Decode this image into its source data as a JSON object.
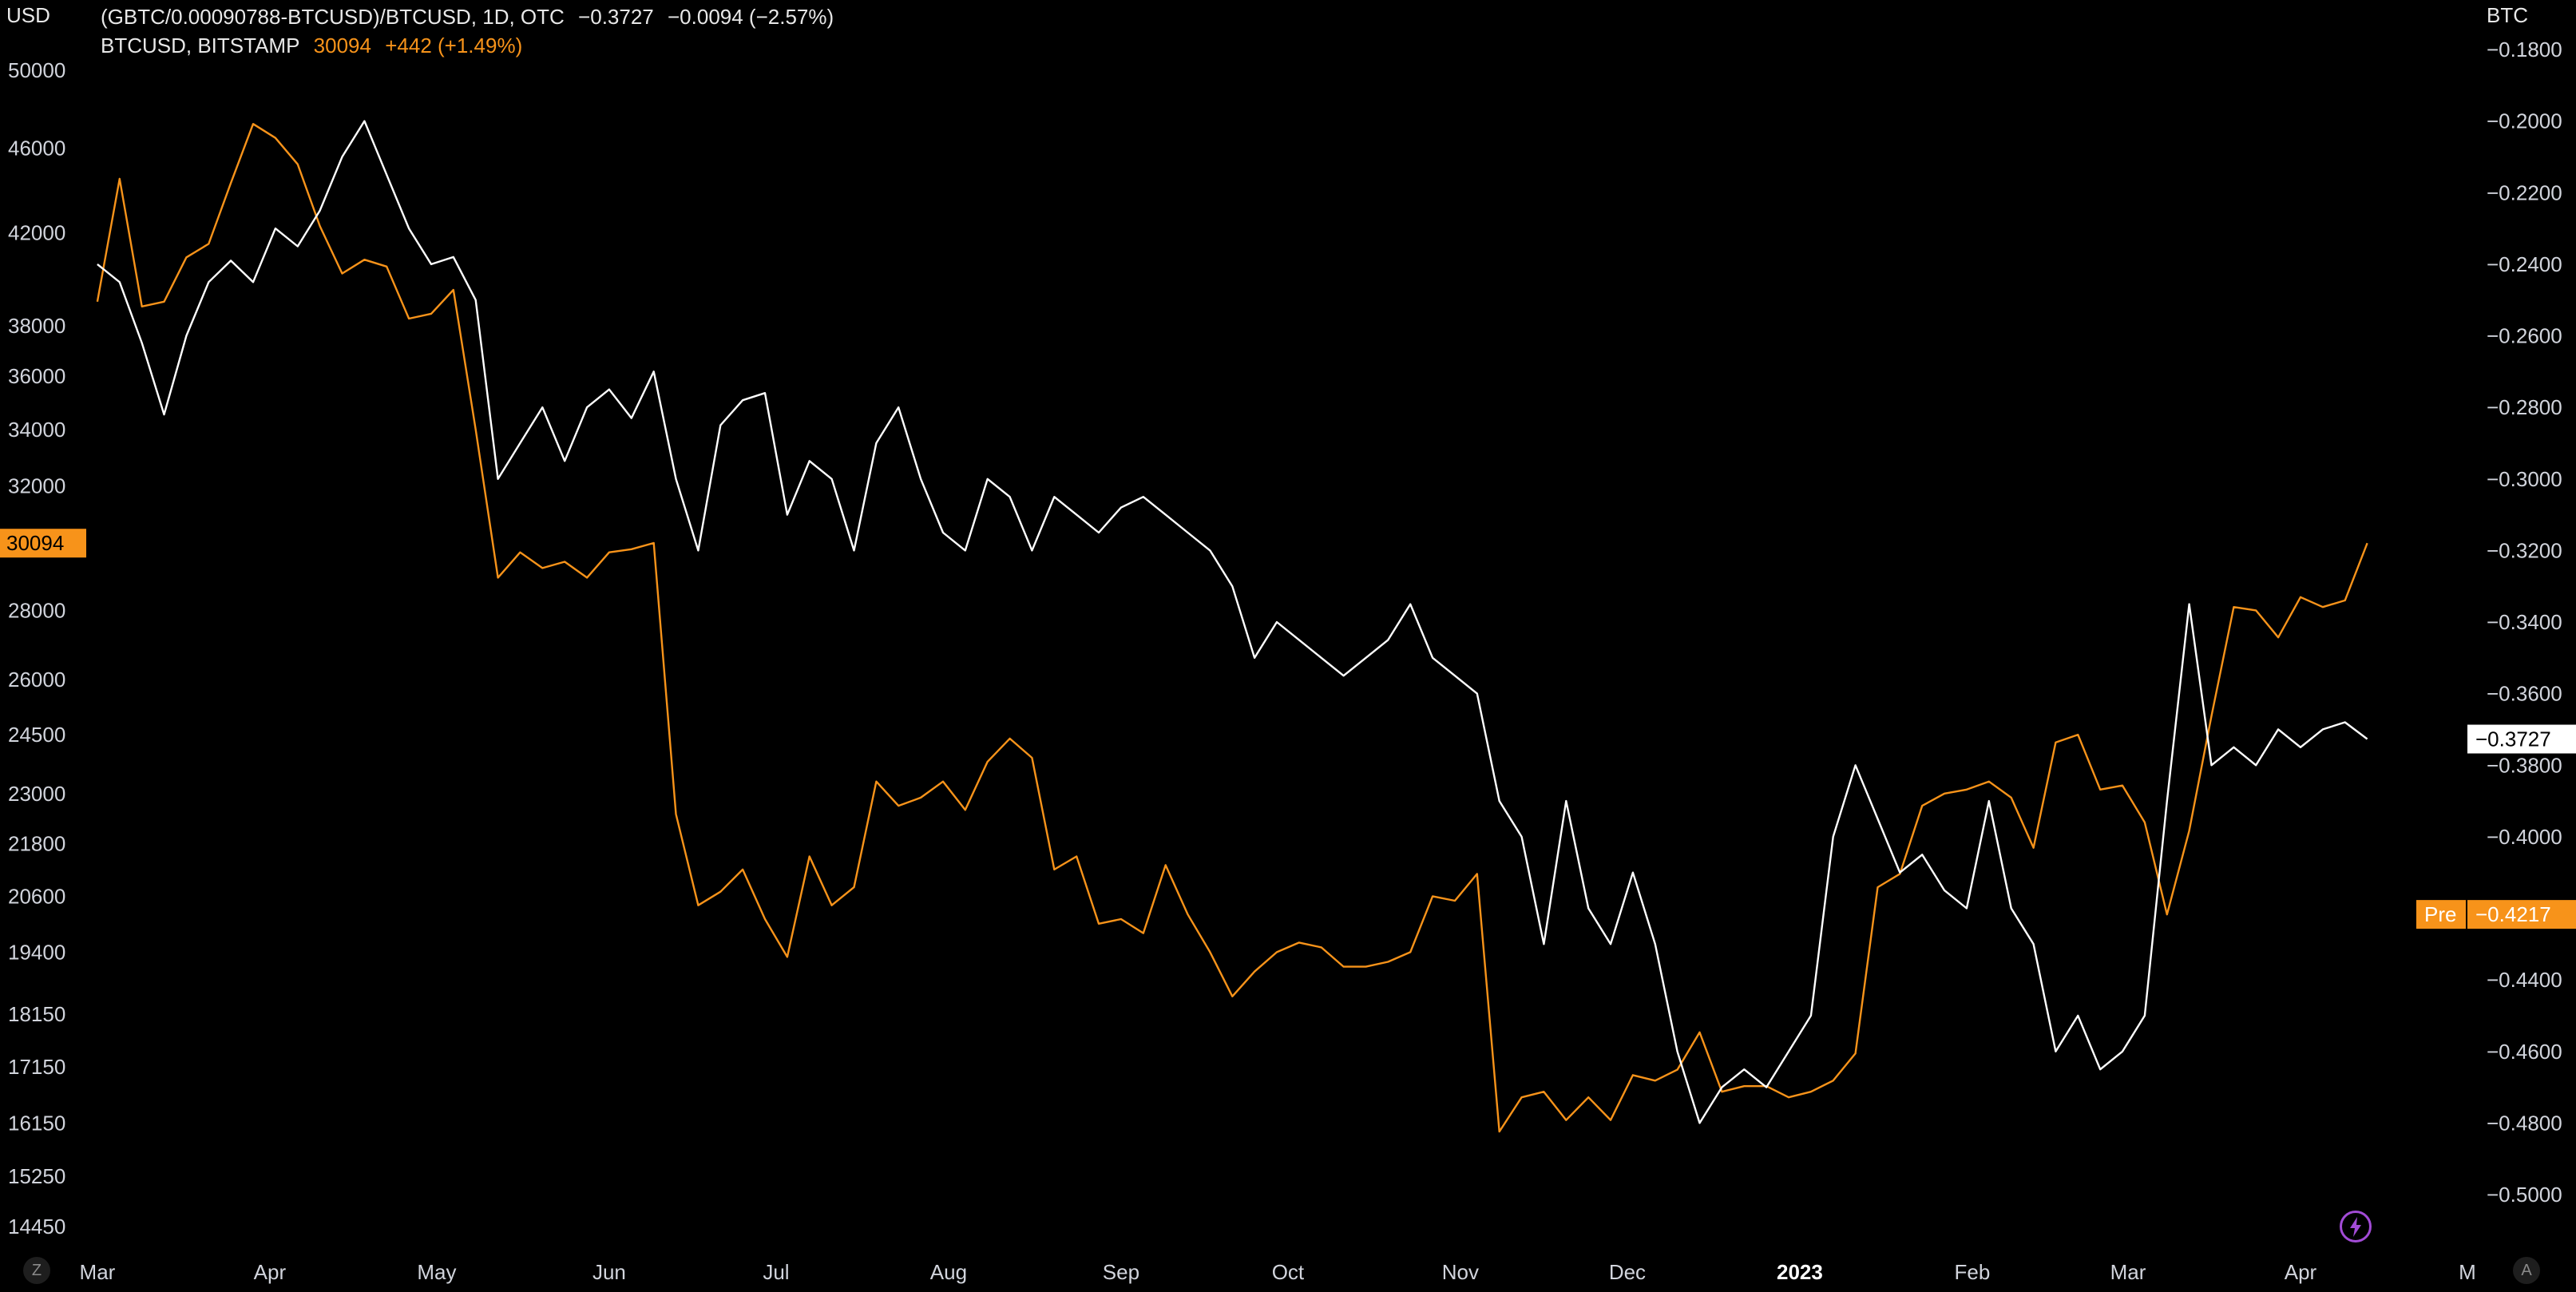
{
  "header": {
    "line1_symbol": "(GBTC/0.00090788-BTCUSD)/BTCUSD, 1D, OTC",
    "line1_value": "−0.3727",
    "line1_change": "−0.0094 (−2.57%)",
    "line2_symbol": "BTCUSD, BITSTAMP",
    "line2_value": "30094",
    "line2_change": "+442 (+1.49%)"
  },
  "left_unit": "USD",
  "right_unit": "BTC",
  "corner_left": "Z",
  "corner_right": "A",
  "colors": {
    "btcusd": "#f7931a",
    "ratio": "#ffffff",
    "background": "#000000",
    "axis_text": "#d1d4dc"
  },
  "chart_data": {
    "type": "line",
    "x_months": [
      "Mar",
      "Apr",
      "May",
      "Jun",
      "Jul",
      "Aug",
      "Sep",
      "Oct",
      "Nov",
      "Dec",
      "2023",
      "Feb",
      "Mar",
      "Apr",
      "M"
    ],
    "left_axis": {
      "unit": "USD",
      "scale": "log",
      "ticks": [
        "50000",
        "46000",
        "42000",
        "38000",
        "36000",
        "34000",
        "32000",
        "28000",
        "26000",
        "24500",
        "23000",
        "21800",
        "20600",
        "19400",
        "18150",
        "17150",
        "16150",
        "15250",
        "14450"
      ]
    },
    "right_axis": {
      "unit": "BTC",
      "ticks": [
        "−0.1800",
        "−0.2000",
        "−0.2200",
        "−0.2400",
        "−0.2600",
        "−0.2800",
        "−0.3000",
        "−0.3200",
        "−0.3400",
        "−0.3600",
        "−0.3800",
        "−0.4000",
        "−0.4200",
        "−0.4400",
        "−0.4600",
        "−0.4800",
        "−0.5000"
      ]
    },
    "price_labels": {
      "btcusd_last": "30094",
      "ratio_last": "−0.3727",
      "pre_tag": "Pre",
      "pre_value": "−0.4217"
    },
    "series": [
      {
        "name": "BTCUSD, BITSTAMP",
        "axis": "left",
        "color": "#f7931a",
        "points": [
          [
            "Mar 1",
            39000
          ],
          [
            "Mar 5",
            44500
          ],
          [
            "Mar 9",
            38800
          ],
          [
            "Mar 13",
            39000
          ],
          [
            "Mar 17",
            40900
          ],
          [
            "Mar 21",
            41500
          ],
          [
            "Mar 25",
            44300
          ],
          [
            "Mar 29",
            47200
          ],
          [
            "Apr 2",
            46500
          ],
          [
            "Apr 6",
            45200
          ],
          [
            "Apr 10",
            42300
          ],
          [
            "Apr 14",
            40200
          ],
          [
            "Apr 18",
            40800
          ],
          [
            "Apr 22",
            40500
          ],
          [
            "Apr 26",
            38300
          ],
          [
            "Apr 30",
            38500
          ],
          [
            "May 4",
            39500
          ],
          [
            "May 8",
            34000
          ],
          [
            "May 12",
            29000
          ],
          [
            "May 16",
            29800
          ],
          [
            "May 20",
            29300
          ],
          [
            "May 24",
            29500
          ],
          [
            "May 28",
            29000
          ],
          [
            "Jun 1",
            29800
          ],
          [
            "Jun 5",
            29900
          ],
          [
            "Jun 9",
            30100
          ],
          [
            "Jun 13",
            22500
          ],
          [
            "Jun 17",
            20400
          ],
          [
            "Jun 21",
            20700
          ],
          [
            "Jun 25",
            21200
          ],
          [
            "Jun 29",
            20100
          ],
          [
            "Jul 3",
            19300
          ],
          [
            "Jul 7",
            21500
          ],
          [
            "Jul 11",
            20400
          ],
          [
            "Jul 15",
            20800
          ],
          [
            "Jul 19",
            23300
          ],
          [
            "Jul 23",
            22700
          ],
          [
            "Jul 27",
            22900
          ],
          [
            "Jul 31",
            23300
          ],
          [
            "Aug 4",
            22600
          ],
          [
            "Aug 8",
            23800
          ],
          [
            "Aug 12",
            24400
          ],
          [
            "Aug 16",
            23900
          ],
          [
            "Aug 20",
            21200
          ],
          [
            "Aug 24",
            21500
          ],
          [
            "Aug 28",
            20000
          ],
          [
            "Sep 1",
            20100
          ],
          [
            "Sep 5",
            19800
          ],
          [
            "Sep 9",
            21300
          ],
          [
            "Sep 13",
            20200
          ],
          [
            "Sep 17",
            19400
          ],
          [
            "Sep 21",
            18500
          ],
          [
            "Sep 25",
            19000
          ],
          [
            "Sep 29",
            19400
          ],
          [
            "Oct 3",
            19600
          ],
          [
            "Oct 7",
            19500
          ],
          [
            "Oct 11",
            19100
          ],
          [
            "Oct 15",
            19100
          ],
          [
            "Oct 19",
            19200
          ],
          [
            "Oct 23",
            19400
          ],
          [
            "Oct 27",
            20600
          ],
          [
            "Oct 31",
            20500
          ],
          [
            "Nov 4",
            21100
          ],
          [
            "Nov 8",
            16000
          ],
          [
            "Nov 12",
            16600
          ],
          [
            "Nov 16",
            16700
          ],
          [
            "Nov 20",
            16200
          ],
          [
            "Nov 24",
            16600
          ],
          [
            "Nov 28",
            16200
          ],
          [
            "Dec 2",
            17000
          ],
          [
            "Dec 6",
            16900
          ],
          [
            "Dec 10",
            17100
          ],
          [
            "Dec 14",
            17800
          ],
          [
            "Dec 18",
            16700
          ],
          [
            "Dec 22",
            16800
          ],
          [
            "Dec 26",
            16800
          ],
          [
            "Dec 30",
            16600
          ],
          [
            "Jan 3",
            16700
          ],
          [
            "Jan 7",
            16900
          ],
          [
            "Jan 11",
            17400
          ],
          [
            "Jan 15",
            20800
          ],
          [
            "Jan 19",
            21100
          ],
          [
            "Jan 23",
            22700
          ],
          [
            "Jan 27",
            23000
          ],
          [
            "Jan 31",
            23100
          ],
          [
            "Feb 4",
            23300
          ],
          [
            "Feb 8",
            22900
          ],
          [
            "Feb 12",
            21700
          ],
          [
            "Feb 16",
            24300
          ],
          [
            "Feb 20",
            24500
          ],
          [
            "Feb 24",
            23100
          ],
          [
            "Feb 28",
            23200
          ],
          [
            "Mar 4",
            22300
          ],
          [
            "Mar 8",
            20200
          ],
          [
            "Mar 12",
            22100
          ],
          [
            "Mar 16",
            25000
          ],
          [
            "Mar 20",
            28100
          ],
          [
            "Mar 24",
            28000
          ],
          [
            "Mar 28",
            27200
          ],
          [
            "Apr 1",
            28400
          ],
          [
            "Apr 5",
            28100
          ],
          [
            "Apr 9",
            28300
          ],
          [
            "Apr 13",
            30094
          ]
        ]
      },
      {
        "name": "(GBTC/0.00090788-BTCUSD)/BTCUSD",
        "axis": "right",
        "color": "#ffffff",
        "points": [
          [
            "Mar 1",
            -0.24
          ],
          [
            "Mar 5",
            -0.245
          ],
          [
            "Mar 9",
            -0.262
          ],
          [
            "Mar 13",
            -0.282
          ],
          [
            "Mar 17",
            -0.26
          ],
          [
            "Mar 21",
            -0.245
          ],
          [
            "Mar 25",
            -0.239
          ],
          [
            "Mar 29",
            -0.245
          ],
          [
            "Apr 2",
            -0.23
          ],
          [
            "Apr 6",
            -0.235
          ],
          [
            "Apr 10",
            -0.225
          ],
          [
            "Apr 14",
            -0.21
          ],
          [
            "Apr 18",
            -0.2
          ],
          [
            "Apr 22",
            -0.215
          ],
          [
            "Apr 26",
            -0.23
          ],
          [
            "Apr 30",
            -0.24
          ],
          [
            "May 4",
            -0.238
          ],
          [
            "May 8",
            -0.25
          ],
          [
            "May 12",
            -0.3
          ],
          [
            "May 16",
            -0.29
          ],
          [
            "May 20",
            -0.28
          ],
          [
            "May 24",
            -0.295
          ],
          [
            "May 28",
            -0.28
          ],
          [
            "Jun 1",
            -0.275
          ],
          [
            "Jun 5",
            -0.283
          ],
          [
            "Jun 9",
            -0.27
          ],
          [
            "Jun 13",
            -0.3
          ],
          [
            "Jun 17",
            -0.32
          ],
          [
            "Jun 21",
            -0.285
          ],
          [
            "Jun 25",
            -0.278
          ],
          [
            "Jun 29",
            -0.276
          ],
          [
            "Jul 3",
            -0.31
          ],
          [
            "Jul 7",
            -0.295
          ],
          [
            "Jul 11",
            -0.3
          ],
          [
            "Jul 15",
            -0.32
          ],
          [
            "Jul 19",
            -0.29
          ],
          [
            "Jul 23",
            -0.28
          ],
          [
            "Jul 27",
            -0.3
          ],
          [
            "Jul 31",
            -0.315
          ],
          [
            "Aug 4",
            -0.32
          ],
          [
            "Aug 8",
            -0.3
          ],
          [
            "Aug 12",
            -0.305
          ],
          [
            "Aug 16",
            -0.32
          ],
          [
            "Aug 20",
            -0.305
          ],
          [
            "Aug 24",
            -0.31
          ],
          [
            "Aug 28",
            -0.315
          ],
          [
            "Sep 1",
            -0.308
          ],
          [
            "Sep 5",
            -0.305
          ],
          [
            "Sep 9",
            -0.31
          ],
          [
            "Sep 13",
            -0.315
          ],
          [
            "Sep 17",
            -0.32
          ],
          [
            "Sep 21",
            -0.33
          ],
          [
            "Sep 25",
            -0.35
          ],
          [
            "Sep 29",
            -0.34
          ],
          [
            "Oct 3",
            -0.345
          ],
          [
            "Oct 7",
            -0.35
          ],
          [
            "Oct 11",
            -0.355
          ],
          [
            "Oct 15",
            -0.35
          ],
          [
            "Oct 19",
            -0.345
          ],
          [
            "Oct 23",
            -0.335
          ],
          [
            "Oct 27",
            -0.35
          ],
          [
            "Oct 31",
            -0.355
          ],
          [
            "Nov 4",
            -0.36
          ],
          [
            "Nov 8",
            -0.39
          ],
          [
            "Nov 12",
            -0.4
          ],
          [
            "Nov 16",
            -0.43
          ],
          [
            "Nov 20",
            -0.39
          ],
          [
            "Nov 24",
            -0.42
          ],
          [
            "Nov 28",
            -0.43
          ],
          [
            "Dec 2",
            -0.41
          ],
          [
            "Dec 6",
            -0.43
          ],
          [
            "Dec 10",
            -0.46
          ],
          [
            "Dec 14",
            -0.48
          ],
          [
            "Dec 18",
            -0.47
          ],
          [
            "Dec 22",
            -0.465
          ],
          [
            "Dec 26",
            -0.47
          ],
          [
            "Dec 30",
            -0.46
          ],
          [
            "Jan 3",
            -0.45
          ],
          [
            "Jan 7",
            -0.4
          ],
          [
            "Jan 11",
            -0.38
          ],
          [
            "Jan 15",
            -0.395
          ],
          [
            "Jan 19",
            -0.41
          ],
          [
            "Jan 23",
            -0.405
          ],
          [
            "Jan 27",
            -0.415
          ],
          [
            "Jan 31",
            -0.42
          ],
          [
            "Feb 4",
            -0.39
          ],
          [
            "Feb 8",
            -0.42
          ],
          [
            "Feb 12",
            -0.43
          ],
          [
            "Feb 16",
            -0.46
          ],
          [
            "Feb 20",
            -0.45
          ],
          [
            "Feb 24",
            -0.465
          ],
          [
            "Feb 28",
            -0.46
          ],
          [
            "Mar 4",
            -0.45
          ],
          [
            "Mar 8",
            -0.39
          ],
          [
            "Mar 12",
            -0.335
          ],
          [
            "Mar 16",
            -0.38
          ],
          [
            "Mar 20",
            -0.375
          ],
          [
            "Mar 24",
            -0.38
          ],
          [
            "Mar 28",
            -0.37
          ],
          [
            "Apr 1",
            -0.375
          ],
          [
            "Apr 5",
            -0.37
          ],
          [
            "Apr 9",
            -0.368
          ],
          [
            "Apr 13",
            -0.3727
          ]
        ]
      }
    ]
  }
}
